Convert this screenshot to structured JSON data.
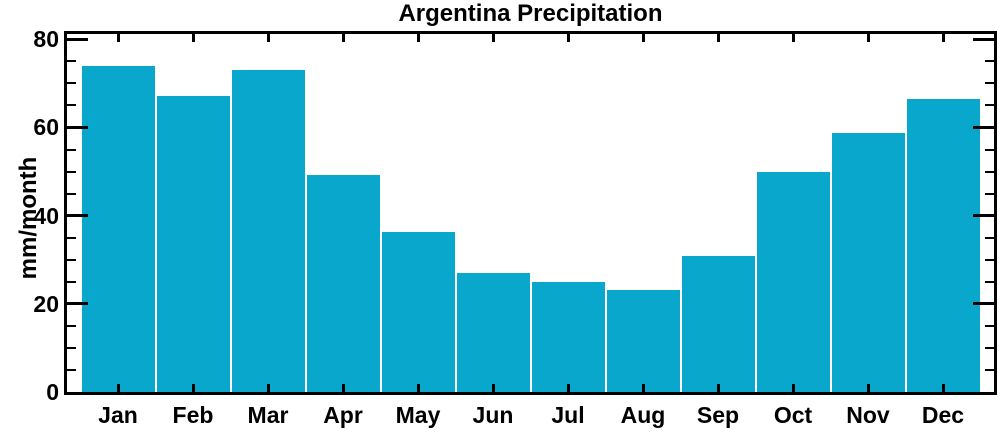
{
  "title": "Argentina Precipitation",
  "chart_data": {
    "type": "bar",
    "title": "Argentina Precipitation",
    "xlabel": "",
    "ylabel": "mm/month",
    "categories": [
      "Jan",
      "Feb",
      "Mar",
      "Apr",
      "May",
      "Jun",
      "Jul",
      "Aug",
      "Sep",
      "Oct",
      "Nov",
      "Dec"
    ],
    "values": [
      74.0,
      67.2,
      73.0,
      49.2,
      36.2,
      27.1,
      25.0,
      23.1,
      30.8,
      49.8,
      58.7,
      66.4
    ],
    "ylim": [
      0,
      81.2
    ],
    "yticks_major": [
      0,
      20,
      40,
      60,
      80
    ],
    "ytick_labels": [
      "0",
      "20",
      "40",
      "60",
      "80"
    ],
    "ytick_minor_interval": 5,
    "x_ticks_at": "month-centers",
    "grid": false,
    "legend": false,
    "bar_color": "#0aa7cd",
    "axis_color": "#000000",
    "text_color": "#000000",
    "background_color": "#ffffff"
  }
}
